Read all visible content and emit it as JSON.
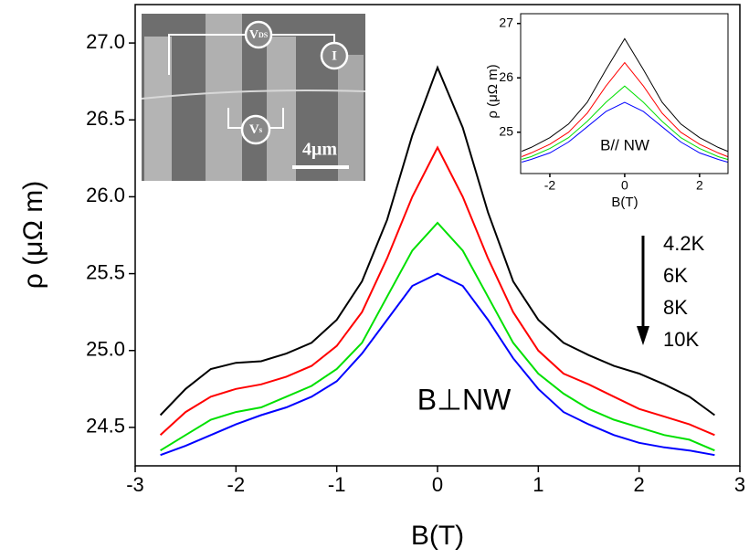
{
  "chart_data": [
    {
      "type": "line",
      "x_label": "B(T)",
      "y_label": "ρ (μΩ m)",
      "annotation": "B⊥NW",
      "x": [
        -2.75,
        -2.5,
        -2.25,
        -2,
        -1.75,
        -1.5,
        -1.25,
        -1,
        -0.75,
        -0.5,
        -0.25,
        0,
        0.25,
        0.5,
        0.75,
        1,
        1.25,
        1.5,
        1.75,
        2,
        2.25,
        2.5,
        2.75
      ],
      "series": [
        {
          "name": "4.2K",
          "color": "#000000",
          "values": [
            24.58,
            24.75,
            24.88,
            24.92,
            24.93,
            24.98,
            25.05,
            25.2,
            25.45,
            25.85,
            26.4,
            26.84,
            26.45,
            25.9,
            25.45,
            25.2,
            25.05,
            24.97,
            24.9,
            24.85,
            24.78,
            24.7,
            24.58
          ]
        },
        {
          "name": "6K",
          "color": "#ff0000",
          "values": [
            24.45,
            24.6,
            24.7,
            24.75,
            24.78,
            24.83,
            24.9,
            25.03,
            25.25,
            25.6,
            26.0,
            26.32,
            26.0,
            25.6,
            25.25,
            25.0,
            24.85,
            24.78,
            24.7,
            24.62,
            24.57,
            24.52,
            24.45
          ]
        },
        {
          "name": "8K",
          "color": "#00e000",
          "values": [
            24.35,
            24.45,
            24.55,
            24.6,
            24.63,
            24.7,
            24.77,
            24.88,
            25.05,
            25.35,
            25.65,
            25.83,
            25.65,
            25.35,
            25.05,
            24.85,
            24.72,
            24.62,
            24.55,
            24.5,
            24.45,
            24.42,
            24.35
          ]
        },
        {
          "name": "10K",
          "color": "#0000ff",
          "values": [
            24.32,
            24.38,
            24.45,
            24.52,
            24.58,
            24.63,
            24.7,
            24.8,
            24.98,
            25.2,
            25.42,
            25.5,
            25.42,
            25.2,
            24.95,
            24.75,
            24.6,
            24.52,
            24.45,
            24.4,
            24.37,
            24.35,
            24.32
          ]
        }
      ],
      "xlim": [
        -3,
        3
      ],
      "ylim": [
        24.25,
        27.25
      ],
      "xticks": [
        -3,
        -2,
        -1,
        0,
        1,
        2,
        3
      ],
      "yticks": [
        24.5,
        {
          "value": 25,
          "label": "25.0"
        },
        25.5,
        {
          "value": 26,
          "label": "26.0"
        },
        26.5,
        {
          "value": 27,
          "label": "27.0"
        }
      ]
    },
    {
      "type": "line",
      "x_label": "B(T)",
      "y_label": "ρ (μΩ m)",
      "annotation": "B// NW",
      "x": [
        -2.75,
        -2.5,
        -2,
        -1.5,
        -1,
        -0.5,
        0,
        0.5,
        1,
        1.5,
        2,
        2.5,
        2.75
      ],
      "series": [
        {
          "color": "#000000",
          "values": [
            24.65,
            24.72,
            24.9,
            25.15,
            25.55,
            26.15,
            26.72,
            26.15,
            25.55,
            25.15,
            24.9,
            24.72,
            24.65
          ]
        },
        {
          "color": "#ff0000",
          "values": [
            24.55,
            24.62,
            24.78,
            25.0,
            25.35,
            25.85,
            26.28,
            25.85,
            25.35,
            25.0,
            24.78,
            24.62,
            24.55
          ]
        },
        {
          "color": "#00e000",
          "values": [
            24.5,
            24.55,
            24.7,
            24.9,
            25.2,
            25.55,
            25.85,
            25.55,
            25.2,
            24.9,
            24.7,
            24.55,
            24.5
          ]
        },
        {
          "color": "#0000ff",
          "values": [
            24.45,
            24.5,
            24.62,
            24.82,
            25.1,
            25.38,
            25.55,
            25.38,
            25.1,
            24.82,
            24.62,
            24.5,
            24.45
          ]
        }
      ],
      "xlim": [
        -2.78,
        2.76
      ],
      "ylim": [
        24.24,
        27.18
      ],
      "xticks": [
        -2,
        0,
        2
      ],
      "yticks": [
        25,
        26,
        27
      ]
    }
  ],
  "inset_image": {
    "vds": {
      "main": "V",
      "sub": "DS"
    },
    "current": "I",
    "vs": {
      "main": "V",
      "sub": "s"
    },
    "scale": "4μm"
  }
}
